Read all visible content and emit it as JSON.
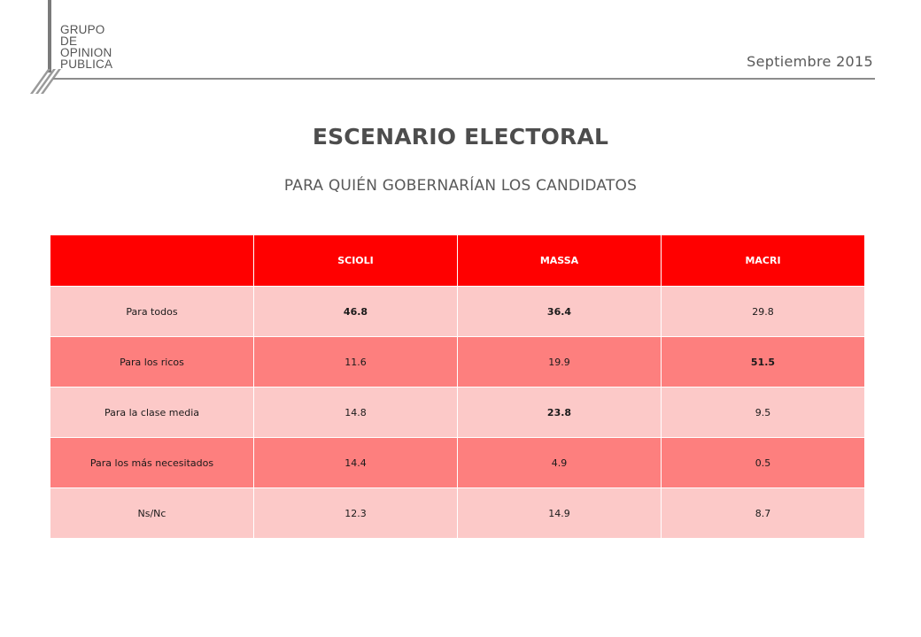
{
  "header": {
    "logo_lines": [
      "GRUPO",
      "DE",
      "OPINION",
      "PUBLICA"
    ],
    "date": "Septiembre 2015"
  },
  "title": "ESCENARIO ELECTORAL",
  "subtitle": "PARA QUIÉN GOBERNARÍAN LOS CANDIDATOS",
  "colors": {
    "header_red": "#ff0000",
    "row_light": "#fcc9c8",
    "row_dark": "#fd7f7e"
  },
  "table": {
    "columns": [
      "",
      "SCIOLI",
      "MASSA",
      "MACRI"
    ],
    "rows": [
      {
        "label": "Para todos",
        "values": [
          "46.8",
          "36.4",
          "29.8"
        ],
        "bold": [
          true,
          true,
          false
        ]
      },
      {
        "label": "Para los ricos",
        "values": [
          "11.6",
          "19.9",
          "51.5"
        ],
        "bold": [
          false,
          false,
          true
        ]
      },
      {
        "label": "Para la clase media",
        "values": [
          "14.8",
          "23.8",
          "9.5"
        ],
        "bold": [
          false,
          true,
          false
        ]
      },
      {
        "label": "Para los más necesitados",
        "values": [
          "14.4",
          "4.9",
          "0.5"
        ],
        "bold": [
          false,
          false,
          false
        ]
      },
      {
        "label": "Ns/Nc",
        "values": [
          "12.3",
          "14.9",
          "8.7"
        ],
        "bold": [
          false,
          false,
          false
        ]
      }
    ]
  }
}
